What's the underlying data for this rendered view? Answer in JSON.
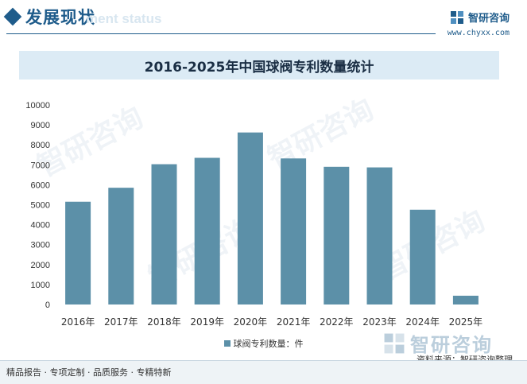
{
  "header": {
    "title": "发展现状",
    "subtitle": "ment status"
  },
  "brand": {
    "name": "智研咨询",
    "url": "www.chyxx.com"
  },
  "watermark": {
    "text": "智研咨询"
  },
  "chart_data": {
    "type": "bar",
    "title": "2016-2025年中国球阀专利数量统计",
    "categories": [
      "2016年",
      "2017年",
      "2018年",
      "2019年",
      "2020年",
      "2021年",
      "2022年",
      "2023年",
      "2024年",
      "2025年"
    ],
    "series": [
      {
        "name": "球阀专利数量：件",
        "values": [
          5150,
          5850,
          7030,
          7350,
          8620,
          7320,
          6900,
          6870,
          4750,
          440
        ]
      }
    ],
    "yticks": [
      "0",
      "1000",
      "2000",
      "3000",
      "4000",
      "5000",
      "6000",
      "7000",
      "8000",
      "9000",
      "10000"
    ],
    "ylim": [
      0,
      10000
    ],
    "grid": false,
    "legend_position": "bottom",
    "bar_color": "#5c90a8"
  },
  "source": "资料来源：智研咨询整理",
  "footer": "精品报告 · 专项定制 · 品质服务 · 专精特新"
}
